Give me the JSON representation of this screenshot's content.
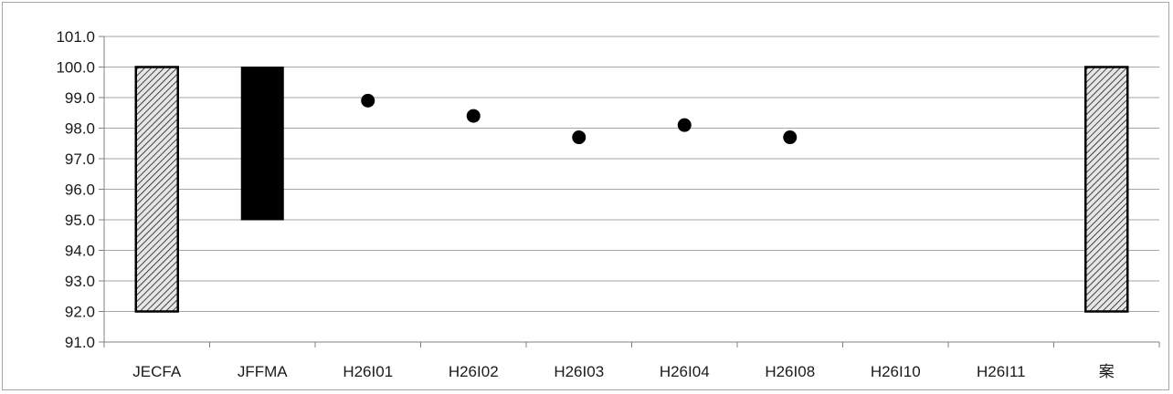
{
  "chart_data": {
    "type": "range-bar-with-points",
    "title": "",
    "xlabel": "",
    "ylabel": "",
    "ylim": [
      91.0,
      101.0
    ],
    "y_ticks": [
      "91.0",
      "92.0",
      "93.0",
      "94.0",
      "95.0",
      "96.0",
      "97.0",
      "98.0",
      "99.0",
      "100.0",
      "101.0"
    ],
    "grid": "horizontal",
    "legend": "none",
    "categories": [
      "JECFA",
      "JFFMA",
      "H26I01",
      "H26I02",
      "H26I03",
      "H26I04",
      "H26I08",
      "H26I10",
      "H26I11",
      "案"
    ],
    "ranges": [
      {
        "category": "JECFA",
        "low": 92.0,
        "high": 100.0,
        "style": "hatched",
        "fill": "#d9d9d9"
      },
      {
        "category": "JFFMA",
        "low": 95.0,
        "high": 100.0,
        "style": "solid",
        "fill": "#000000"
      },
      {
        "category": "案",
        "low": 92.0,
        "high": 100.0,
        "style": "hatched",
        "fill": "#d9d9d9"
      }
    ],
    "points": [
      {
        "category": "H26I01",
        "value": 98.9
      },
      {
        "category": "H26I02",
        "value": 98.4
      },
      {
        "category": "H26I03",
        "value": 97.7
      },
      {
        "category": "H26I04",
        "value": 98.1
      },
      {
        "category": "H26I08",
        "value": 97.7
      }
    ],
    "colors": {
      "grid": "#a6a6a6",
      "axis": "#808080",
      "point": "#000000",
      "bar_outline": "#000000"
    }
  }
}
